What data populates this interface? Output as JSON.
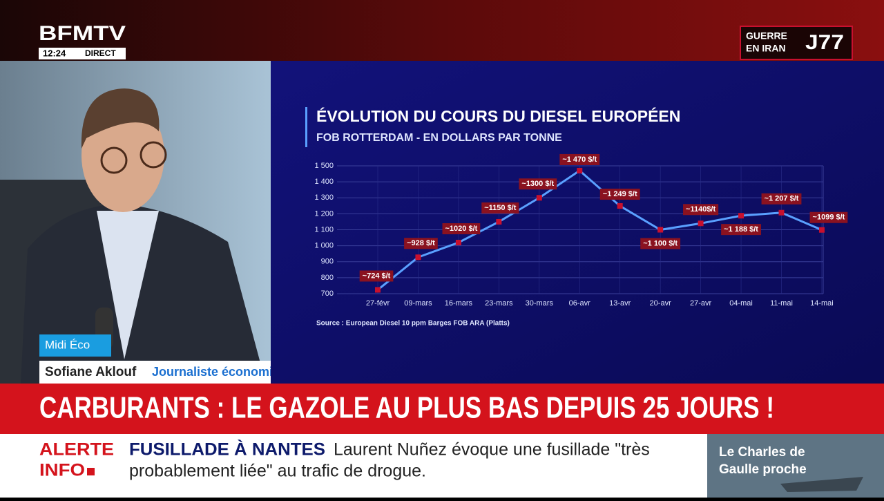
{
  "channel": {
    "logo": "BFMTV",
    "time": "12:24",
    "live": "DIRECT"
  },
  "badge": {
    "line1": "GUERRE",
    "line2": "EN IRAN",
    "day": "J77"
  },
  "lower_third": {
    "show": "Midi Éco",
    "name": "Sofiane Aklouf",
    "role": "Journaliste économie Midi BFM"
  },
  "headline": "CARBURANTS : LE GAZOLE AU PLUS BAS DEPUIS 25 JOURS !",
  "ticker": {
    "alert_line1": "ALERTE",
    "alert_line2": "INFO",
    "topic": "FUSILLADE À NANTES",
    "lines": [
      "Laurent Nuñez évoque une fusillade \"très",
      "probablement liée\" au trafic de drogue."
    ]
  },
  "side_panel": {
    "lines": [
      "Le Charles de",
      "Gaulle proche"
    ]
  },
  "chart_data": {
    "type": "line",
    "title": "ÉVOLUTION DU COURS DU DIESEL EUROPÉEN",
    "subtitle": "FOB ROTTERDAM - EN DOLLARS PAR TONNE",
    "source": "Source : European Diesel 10 ppm Barges FOB ARA (Platts)",
    "categories": [
      "27-févr",
      "09-mars",
      "16-mars",
      "23-mars",
      "30-mars",
      "06-avr",
      "13-avr",
      "20-avr",
      "27-avr",
      "04-mai",
      "11-mai",
      "14-mai"
    ],
    "values": [
      724,
      928,
      1020,
      1150,
      1300,
      1470,
      1249,
      1100,
      1140,
      1188,
      1207,
      1099
    ],
    "value_labels": [
      "~724 $/t",
      "~928 $/t",
      "~1020 $/t",
      "~1150 $/t",
      "~1300 $/t",
      "~1 470 $/t",
      "~1 249 $/t",
      "~1 100 $/t",
      "~1140$/t",
      "~1 188 $/t",
      "~1 207 $/t",
      "~1099 $/t"
    ],
    "color": "#5aa0ff",
    "marker_color": "#c8102e",
    "ylim": [
      700,
      1500
    ],
    "yticks": [
      700,
      800,
      900,
      {
        "value": 1000,
        "label": "1 000"
      },
      {
        "value": 1100,
        "label": "1 100"
      },
      {
        "value": 1200,
        "label": "1 200"
      },
      {
        "value": 1300,
        "label": "1 300"
      },
      {
        "value": 1400,
        "label": "1 400"
      },
      {
        "value": 1500,
        "label": "1 500"
      }
    ],
    "grid": true
  }
}
